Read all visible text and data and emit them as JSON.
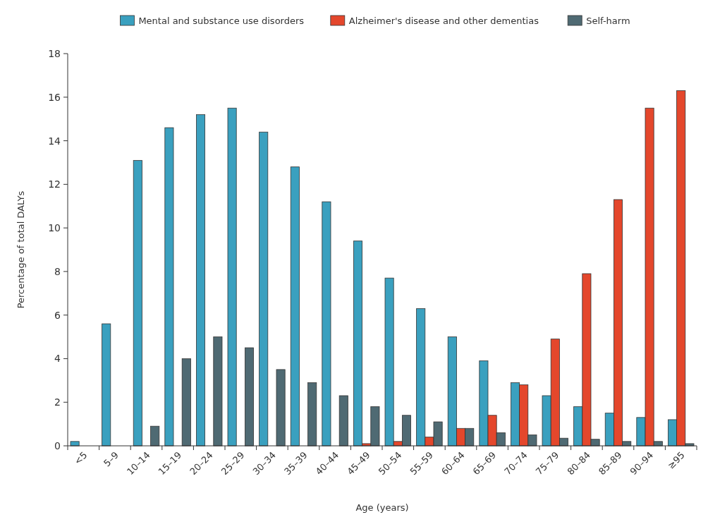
{
  "chart_data": {
    "type": "bar",
    "xlabel": "Age (years)",
    "ylabel": "Percentage of total DALYs",
    "categories": [
      "<5",
      "5–9",
      "10–14",
      "15–19",
      "20–24",
      "25–29",
      "30–34",
      "35–39",
      "40–44",
      "45–49",
      "50–54",
      "55–59",
      "60–64",
      "65–69",
      "70–74",
      "75–79",
      "80–84",
      "85–89",
      "90–94",
      "≥95"
    ],
    "series": [
      {
        "name": "Mental and substance use disorders",
        "color": "#3aa0bf",
        "values": [
          0.2,
          5.6,
          13.1,
          14.6,
          15.2,
          15.5,
          14.4,
          12.8,
          11.2,
          9.4,
          7.7,
          6.3,
          5.0,
          3.9,
          2.9,
          2.3,
          1.8,
          1.5,
          1.3,
          1.2
        ]
      },
      {
        "name": "Alzheimer's disease and other dementias",
        "color": "#e4472c",
        "values": [
          0,
          0,
          0,
          0,
          0,
          0,
          0,
          0,
          0,
          0.1,
          0.2,
          0.4,
          0.8,
          1.4,
          2.8,
          4.9,
          7.9,
          11.3,
          15.5,
          16.3
        ]
      },
      {
        "name": "Self-harm",
        "color": "#4f6a73",
        "values": [
          0,
          0,
          0.9,
          4.0,
          5.0,
          4.5,
          3.5,
          2.9,
          2.3,
          1.8,
          1.4,
          1.1,
          0.8,
          0.6,
          0.5,
          0.35,
          0.3,
          0.2,
          0.2,
          0.1
        ]
      }
    ],
    "ylim": [
      0,
      18
    ],
    "yticks": [
      0,
      2,
      4,
      6,
      8,
      10,
      12,
      14,
      16,
      18
    ],
    "legend": "top",
    "grid": false
  }
}
